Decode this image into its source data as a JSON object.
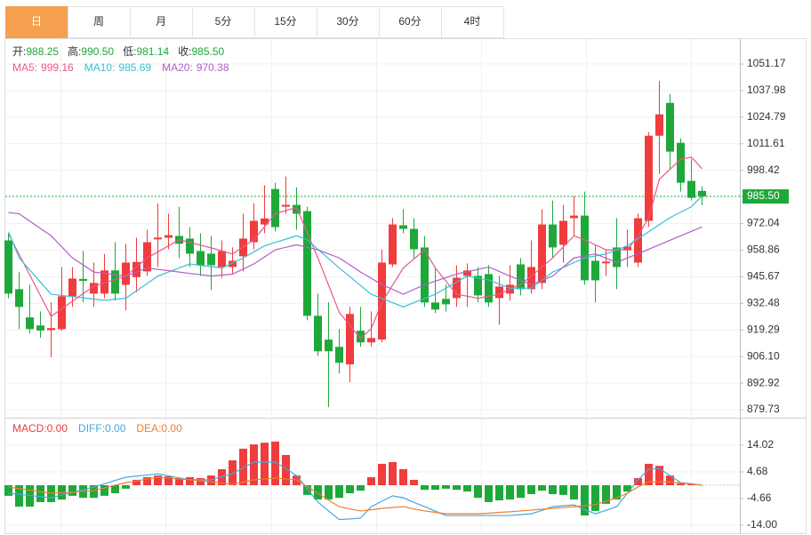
{
  "chart_data": {
    "type": "candlestick",
    "tabs": [
      "日",
      "周",
      "月",
      "5分",
      "15分",
      "30分",
      "60分",
      "4时"
    ],
    "active_tab": 0,
    "up_color": "#f03c3c",
    "down_color": "#1fa83a",
    "ylim": [
      875.77,
      1062.2
    ],
    "yticks": [
      1051.17,
      1037.98,
      1024.79,
      1011.61,
      998.42,
      {
        "value": 985.5,
        "label": "985.50"
      },
      972.04,
      958.86,
      945.67,
      932.48,
      919.29,
      {
        "value": 906.1,
        "label": "906.10"
      },
      892.92,
      879.73
    ],
    "grid": true,
    "ohlc_header": [
      {
        "label": "开:",
        "value_label": "988.25"
      },
      {
        "label": "高:",
        "value_label": "990.50"
      },
      {
        "label": "低:",
        "value_label": "981.14"
      },
      {
        "label": "收:",
        "value_label": "985.50"
      }
    ],
    "open": [
      963.7,
      939.5,
      925.5,
      921.5,
      919.2,
      919.7,
      936,
      944.6,
      937.3,
      937.3,
      948.8,
      941.7,
      945.5,
      948.3,
      964.2,
      965,
      965.9,
      964.6,
      958.4,
      957.1,
      950.5,
      950.5,
      955.8,
      962.8,
      971.6,
      989.2,
      980.4,
      981.3,
      978.2,
      926.3,
      914.5,
      910.9,
      902.2,
      918.9,
      913.1,
      914.5,
      951.8,
      971.2,
      969.4,
      960.2,
      932.9,
      934.7,
      935.1,
      946.1,
      946.1,
      947,
      935.1,
      937.3,
      951.8,
      939.5,
      942.6,
      971.6,
      961.5,
      974.7,
      976,
      953.6,
      952.3,
      960.2,
      958.8,
      952.7,
      973.4,
      1015.6,
      1031.9,
      1012.1,
      993.2,
      988.25
    ],
    "high": [
      967,
      948,
      941.7,
      928.5,
      933,
      950.5,
      950.5,
      958.4,
      952.7,
      957,
      962.8,
      962,
      965,
      969,
      982,
      976.9,
      980.4,
      970.3,
      967.2,
      965.9,
      963.7,
      960.2,
      976.9,
      982.1,
      991,
      992.3,
      995.4,
      990,
      980.4,
      937.3,
      933,
      919.7,
      930.7,
      930.7,
      928.5,
      959.3,
      974.7,
      979.1,
      974.7,
      965.9,
      950.5,
      941.7,
      951.4,
      952.3,
      950.5,
      951.4,
      946.1,
      951.4,
      954.9,
      963.7,
      979.1,
      983.5,
      981.3,
      985.7,
      987.9,
      961.5,
      959.3,
      974.7,
      969,
      976.9,
      1017.4,
      1042.8,
      1036.3,
      1014.3,
      1004.1,
      990.5
    ],
    "low": [
      935,
      919.7,
      917.5,
      915.3,
      905.7,
      918.8,
      930.7,
      933,
      930.7,
      935,
      933.8,
      929,
      938,
      946.1,
      950.5,
      959.3,
      954.9,
      950.5,
      946.1,
      939.1,
      945.2,
      947,
      948.3,
      959.3,
      967.2,
      968.1,
      976.9,
      969,
      924.1,
      906.5,
      881,
      897.7,
      893.4,
      911,
      911,
      913.1,
      950.5,
      967.2,
      954.9,
      930.7,
      927.6,
      928.5,
      930.7,
      930.7,
      932.9,
      930.7,
      921.9,
      933.8,
      936.4,
      937.3,
      939.5,
      954.9,
      952.7,
      965.9,
      941.7,
      932.9,
      946.1,
      939.5,
      950.5,
      950.5,
      970.3,
      996.7,
      998.9,
      987.9,
      983.5,
      981.14
    ],
    "close": [
      937.3,
      930.7,
      919.7,
      919,
      920.2,
      936,
      944.8,
      943.6,
      942.6,
      948.8,
      937.3,
      952.7,
      953,
      962.8,
      965.1,
      966.3,
      962,
      957.1,
      951.4,
      951.4,
      958.4,
      953.6,
      964.6,
      973.4,
      974.6,
      970.3,
      981.3,
      976.9,
      926.3,
      908.7,
      908.7,
      903,
      927.2,
      913.1,
      915.3,
      952.7,
      971.6,
      969.4,
      959.3,
      932.9,
      929.4,
      932,
      945.2,
      948.8,
      936.4,
      932.9,
      940.8,
      941.7,
      939.5,
      950.5,
      971.6,
      960.2,
      973.4,
      976,
      943.9,
      943.9,
      953.2,
      950.5,
      960.6,
      974.7,
      1015.6,
      1026.2,
      1007.7,
      992.3,
      984.8,
      985.5
    ],
    "indicators": [
      {
        "label": "MA5:",
        "color": "#e8578e",
        "values": [
          967,
          956.8,
          946.5,
          936.3,
          926,
          929.8,
          933.5,
          937.3,
          941,
          942.7,
          944.3,
          946,
          950.5,
          955,
          958,
          961,
          964,
          962.7,
          961.3,
          960,
          958.5,
          957,
          960.5,
          964,
          970.5,
          977,
          978.5,
          980,
          967.5,
          955,
          941.5,
          928,
          921.5,
          915,
          920,
          933,
          941.5,
          950,
          954.5,
          959,
          950,
          943.5,
          937,
          936,
          935,
          936,
          937,
          939.5,
          942,
          946,
          950.5,
          955,
          960.5,
          966,
          964,
          961.5,
          959,
          959,
          959,
          966,
          975,
          994,
          999,
          1004,
          1005,
          999.16
        ]
      },
      {
        "label": "MA10:",
        "color": "#39bfd5",
        "values": [
          968,
          955,
          949,
          943,
          937,
          936.4,
          935.8,
          935.2,
          934.6,
          934,
          934.5,
          935,
          938.7,
          942.3,
          946,
          948,
          950,
          952,
          951.3,
          950.7,
          950,
          952.5,
          955,
          958,
          961,
          962.7,
          964.3,
          966,
          964,
          959.3,
          954.7,
          950,
          945.7,
          941.3,
          937,
          934.9,
          932.8,
          930.7,
          932.8,
          934.9,
          937,
          940,
          943,
          946,
          945,
          944,
          942,
          940,
          940,
          940,
          944,
          948,
          950.3,
          952.7,
          955,
          956,
          957,
          959,
          961,
          964.5,
          968,
          971.5,
          975,
          977.7,
          980.4,
          985.69
        ]
      },
      {
        "label": "MA20:",
        "color": "#b05ec8",
        "values": [
          977.5,
          976.9,
          973.3,
          969.6,
          966,
          960.5,
          955,
          951.5,
          948,
          947.3,
          946.7,
          946,
          948,
          950,
          949.3,
          948.7,
          948,
          947.3,
          946.7,
          946,
          946.5,
          947,
          949.5,
          952,
          955.5,
          959,
          960.3,
          961.5,
          960.3,
          959,
          957,
          955,
          951.5,
          948,
          944.9,
          941.7,
          939.4,
          937,
          939.4,
          941.7,
          943.5,
          945.2,
          947,
          948.2,
          949.3,
          950.5,
          948.3,
          946,
          943.9,
          941.7,
          943.9,
          946,
          950.5,
          955,
          956,
          957,
          954.9,
          952.7,
          955,
          957,
          959.3,
          961.5,
          963.8,
          966,
          968.2,
          970.38
        ]
      }
    ],
    "macd": {
      "ylim": [
        -16.81,
        23.04
      ],
      "yticks": [
        14.02,
        4.68,
        -4.66,
        {
          "value": -14,
          "label": "-14.00"
        }
      ],
      "hist": {
        "label": "MACD:",
        "value_label": "0.00",
        "color": "#f03c3c",
        "down_color": "#1fa83a",
        "values": [
          -3.7,
          -7.5,
          -7.5,
          -5.9,
          -5.9,
          -5,
          -3.7,
          -4.4,
          -4.4,
          -3.7,
          -2.8,
          -1.2,
          1.9,
          2.8,
          3.4,
          3.1,
          2.5,
          2.8,
          2.5,
          3.4,
          5.6,
          8.7,
          12.8,
          14.3,
          14.9,
          15.3,
          10.6,
          3.4,
          -3.4,
          -5,
          -5,
          -4.4,
          -2.8,
          -1.9,
          2.8,
          7.5,
          8.1,
          5.6,
          1.9,
          -1.6,
          -1.6,
          -1.2,
          -1.6,
          -2.2,
          -4.4,
          -5.9,
          -5.3,
          -5,
          -4.4,
          -3.1,
          -1.9,
          -3.1,
          -3.4,
          -5,
          -10.6,
          -9,
          -6.5,
          -5,
          -2.2,
          2.5,
          7.5,
          6.8,
          3.4,
          0.6,
          0.3,
          0
        ]
      },
      "lines": [
        {
          "label": "DIFF:",
          "value_label": "0.00",
          "color": "#44a9e0",
          "values": [
            -2.8,
            -3.2,
            -3.6,
            -4,
            -4.4,
            -3.4,
            -2.5,
            -1.6,
            -0.6,
            0.5,
            1.7,
            2.8,
            3.2,
            3.6,
            4,
            3.3,
            2.6,
            1.9,
            1.9,
            1.9,
            3,
            4,
            6.1,
            8.1,
            8.1,
            8.1,
            5.8,
            3.4,
            -1.3,
            -5.9,
            -9,
            -12,
            -11.8,
            -11.5,
            -7.5,
            -5.6,
            -3.7,
            -4.4,
            -6,
            -7.5,
            -9.1,
            -10.6,
            -10.6,
            -10.6,
            -10.6,
            -10.6,
            -10.6,
            -10.6,
            -10.3,
            -10,
            -8.8,
            -7.5,
            -7.2,
            -6.9,
            -8.5,
            -10,
            -8.8,
            -7.5,
            -2.8,
            1.9,
            5.6,
            5.9,
            3.4,
            0.9,
            0.5,
            0
          ]
        },
        {
          "label": "DEA:",
          "value_label": "0.00",
          "color": "#ef7d2a",
          "values": [
            -0.6,
            -1.2,
            -1.7,
            -2.3,
            -2.8,
            -2.6,
            -2.4,
            -2.1,
            -1.9,
            -1,
            0,
            0.9,
            1.5,
            2.2,
            2.8,
            2.5,
            2.2,
            1.9,
            1.6,
            1.2,
            0.8,
            0.3,
            1.1,
            1.9,
            2.2,
            2.5,
            2.2,
            1.9,
            -0.5,
            -2.8,
            -5.2,
            -7.5,
            -8.3,
            -9,
            -8.6,
            -8.1,
            -7.8,
            -7.5,
            -8.3,
            -9,
            -9.5,
            -10,
            -10,
            -10,
            -10,
            -9.8,
            -9.5,
            -9.3,
            -9,
            -8.7,
            -8.4,
            -8.1,
            -7.8,
            -7.5,
            -7.2,
            -6.8,
            -5.6,
            -4.4,
            -2.8,
            -0.6,
            1.2,
            1.2,
            1.2,
            0.8,
            0.4,
            0
          ]
        }
      ]
    }
  }
}
